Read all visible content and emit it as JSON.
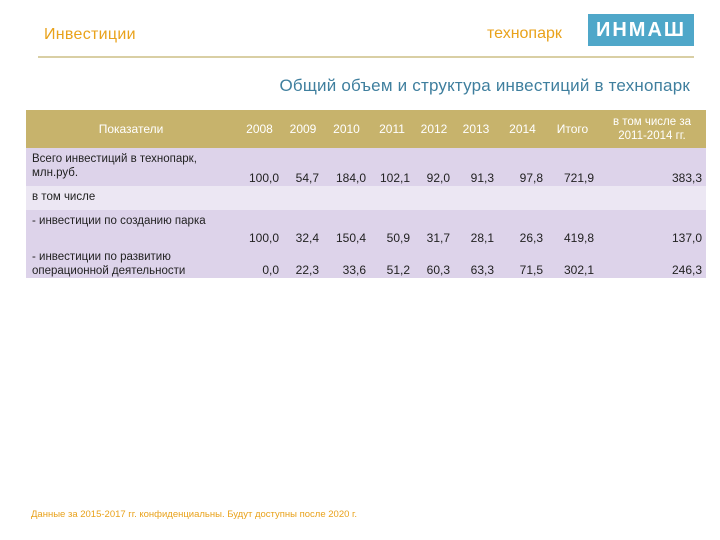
{
  "header": {
    "section_title": "Инвестиции",
    "brand_prefix": "технопарк",
    "brand_name": "ИНМАШ"
  },
  "slide_heading": "Общий объем и структура инвестиций в технопарк",
  "table": {
    "headers": [
      "Показатели",
      "2008",
      "2009",
      "2010",
      "2011",
      "2012",
      "2013",
      "2014",
      "Итого",
      "в том числе за 2011-2014 гг."
    ],
    "rows": [
      {
        "label": "Всего инвестиций в технопарк, млн.руб.",
        "values": [
          "100,0",
          "54,7",
          "184,0",
          "102,1",
          "92,0",
          "91,3",
          "97,8",
          "721,9",
          "383,3"
        ]
      },
      {
        "label": "в том числе",
        "values": []
      },
      {
        "label": "- инвестиции по созданию парка",
        "values": [
          "100,0",
          "32,4",
          "150,4",
          "50,9",
          "31,7",
          "28,1",
          "26,3",
          "419,8",
          "137,0"
        ]
      },
      {
        "label": "- инвестиции по развитию операционной деятельности",
        "values": [
          "0,0",
          "22,3",
          "33,6",
          "51,2",
          "60,3",
          "63,3",
          "71,5",
          "302,1",
          "246,3"
        ]
      }
    ]
  },
  "footnote": "Данные за 2015-2017 гг. конфиденциальны. Будут доступны после 2020 г.",
  "colors": {
    "accent_orange": "#e9a21b",
    "brand_blue": "#4fa7c9",
    "header_gold": "#c7b36c",
    "row_lavender": "#ddd3ea"
  }
}
